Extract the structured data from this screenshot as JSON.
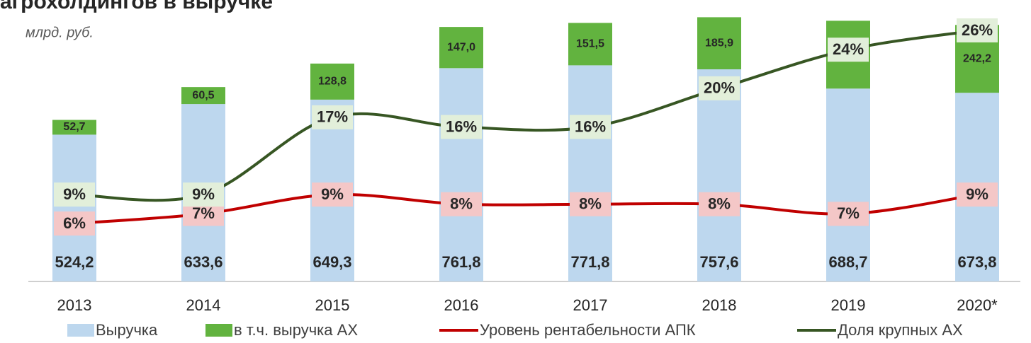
{
  "chart_data": {
    "type": "bar_line",
    "title": "агрохолдингов в выручке",
    "subtitle": "млрд. руб.",
    "categories": [
      "2013",
      "2014",
      "2015",
      "2016",
      "2017",
      "2018",
      "2019",
      "2020*"
    ],
    "ylim": [
      0,
      1000
    ],
    "y2lim": [
      0,
      29
    ],
    "series": [
      {
        "name": "Выручка",
        "type": "bar",
        "color": "#bdd7ee",
        "values": [
          524.2,
          633.6,
          649.3,
          761.8,
          771.8,
          757.6,
          688.7,
          673.8
        ],
        "value_labels": [
          "524,2",
          "633,6",
          "649,3",
          "761,8",
          "771,8",
          "757,6",
          "688,7",
          "673,8"
        ]
      },
      {
        "name": "в т.ч. выручка АХ",
        "type": "bar",
        "color": "#62b33f",
        "values": [
          52.7,
          60.5,
          128.8,
          147.0,
          151.5,
          185.9,
          242.2,
          242.2
        ],
        "value_labels": [
          "52,7",
          "60,5",
          "128,8",
          "147,0",
          "151,5",
          "185,9",
          "",
          "242,2"
        ]
      },
      {
        "name": "Уровень рентабельности АПК",
        "type": "line",
        "axis": "y2",
        "color": "#c00000",
        "label_bg": "#f4c7c7",
        "values": [
          6,
          7,
          9,
          8,
          8,
          8,
          7,
          9
        ],
        "value_labels": [
          "6%",
          "7%",
          "9%",
          "8%",
          "8%",
          "8%",
          "7%",
          "9%"
        ]
      },
      {
        "name": "Доля крупных АХ",
        "type": "line",
        "axis": "y2",
        "color": "#375623",
        "label_bg": "#e2efda",
        "values": [
          9,
          9,
          17,
          16,
          16,
          20,
          24,
          26
        ],
        "value_labels": [
          "9%",
          "9%",
          "17%",
          "16%",
          "16%",
          "20%",
          "24%",
          "26%"
        ]
      }
    ]
  }
}
